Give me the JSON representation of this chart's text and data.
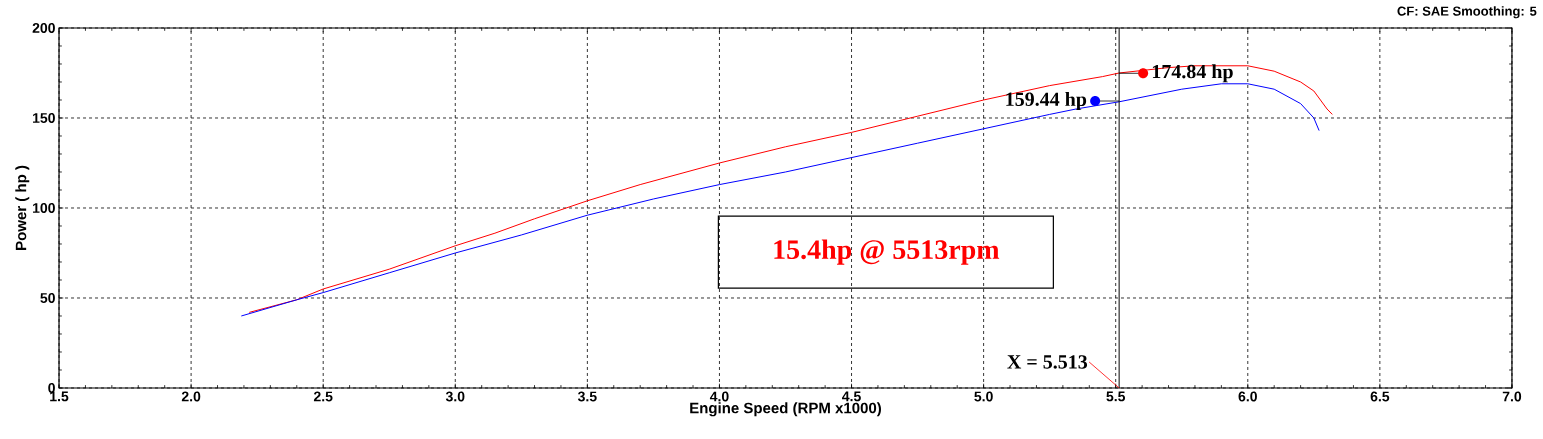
{
  "chart_data": {
    "type": "line",
    "xlabel": "Engine Speed (RPM x1000)",
    "ylabel": "Power ( hp )",
    "xlim": [
      1.5,
      7.0
    ],
    "ylim": [
      0,
      200
    ],
    "xticks": [
      {
        "value": 1.5,
        "label": "1.5"
      },
      {
        "value": 2.0,
        "label": "2.0"
      },
      {
        "value": 2.5,
        "label": "2.5"
      },
      {
        "value": 3.0,
        "label": "3.0"
      },
      {
        "value": 3.5,
        "label": "3.5"
      },
      {
        "value": 4.0,
        "label": "4.0"
      },
      {
        "value": 4.5,
        "label": "4.5"
      },
      {
        "value": 5.0,
        "label": "5.0"
      },
      {
        "value": 5.5,
        "label": "5.5"
      },
      {
        "value": 6.0,
        "label": "6.0"
      },
      {
        "value": 6.5,
        "label": "6.5"
      },
      {
        "value": 7.0,
        "label": "7.0"
      }
    ],
    "yticks": [
      0,
      50,
      100,
      150,
      200
    ],
    "grid": true,
    "marker": "none",
    "line_style": "solid",
    "series": [
      {
        "color": "#ff0000",
        "x": [
          2.22,
          2.4,
          2.5,
          2.75,
          3.0,
          3.15,
          3.3,
          3.5,
          3.7,
          4.0,
          4.25,
          4.5,
          4.75,
          5.0,
          5.25,
          5.45,
          5.513,
          5.7,
          5.8,
          6.0,
          6.1,
          6.2,
          6.25,
          6.3,
          6.32
        ],
        "values": [
          42,
          49,
          55,
          66,
          79,
          86,
          94,
          104,
          113,
          125,
          134,
          142,
          151,
          160,
          168,
          173,
          175,
          178,
          179,
          179,
          176,
          170,
          165,
          155,
          152
        ]
      },
      {
        "color": "#0000ff",
        "x": [
          2.19,
          2.4,
          2.5,
          2.75,
          3.0,
          3.25,
          3.5,
          3.75,
          4.0,
          4.25,
          4.5,
          4.75,
          5.0,
          5.25,
          5.35,
          5.513,
          5.75,
          5.9,
          6.0,
          6.1,
          6.2,
          6.25,
          6.27
        ],
        "values": [
          40,
          49,
          53,
          64,
          75,
          85,
          96,
          105,
          113,
          120,
          128,
          136,
          144,
          152,
          155,
          159,
          166,
          169,
          169,
          166,
          158,
          150,
          143
        ]
      }
    ],
    "ref_lines": [
      {
        "axis": "x",
        "value": 5.513,
        "label": "X = 5.513",
        "color": "#000000",
        "line_style": "solid"
      }
    ],
    "annotations": [
      {
        "text": "174.84 hp",
        "x": 5.513,
        "y": 174.84
      },
      {
        "text": "159.44 hp",
        "x": 5.513,
        "y": 159.44
      },
      "15.4hp @ 5513rpm",
      "CF: SAE  Smoothing: 5"
    ]
  }
}
